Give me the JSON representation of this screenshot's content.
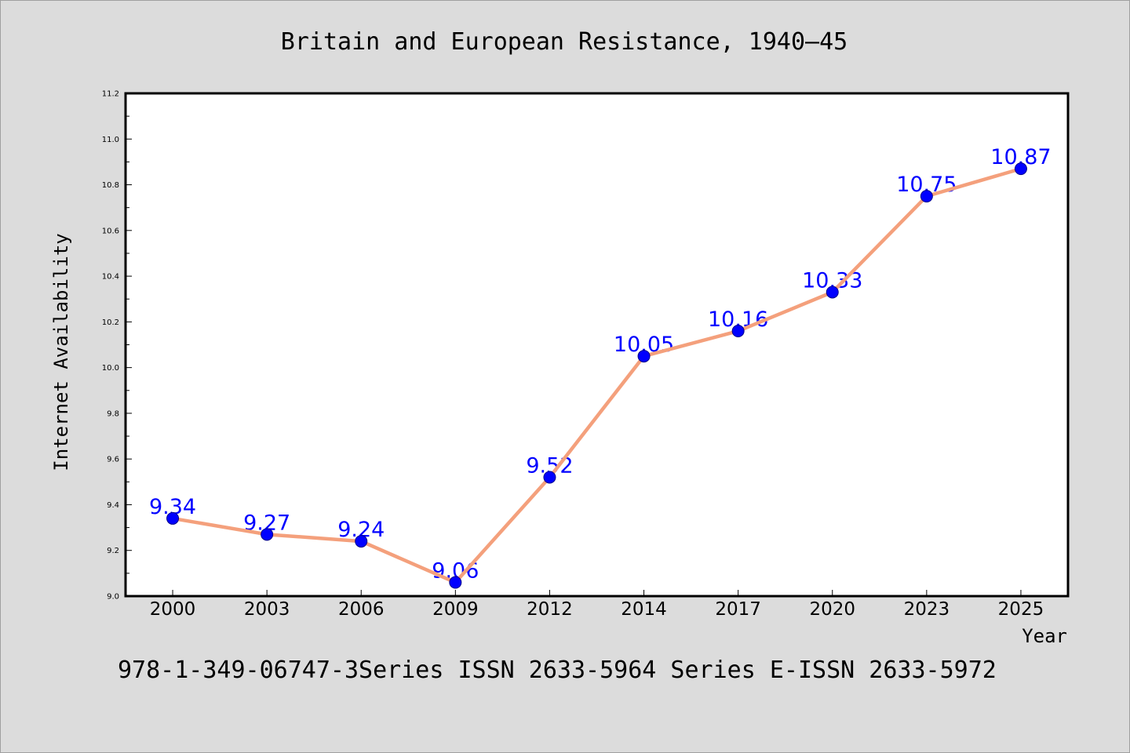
{
  "footer": "978-1-349-06747-3Series ISSN 2633-5964 Series E-ISSN 2633-5972",
  "colors": {
    "background": "#dcdcdc",
    "plot_background": "#ffffff",
    "line": "#f4a07c",
    "marker": "#0000ff",
    "marker_edge": "#00008b",
    "data_label": "#0000ff",
    "frame": "#000000"
  },
  "chart_data": {
    "type": "line",
    "title": "Britain and European Resistance, 1940–45",
    "xlabel": "Year",
    "ylabel": "Internet Availability",
    "categories": [
      "2000",
      "2003",
      "2006",
      "2009",
      "2012",
      "2014",
      "2017",
      "2020",
      "2023",
      "2025"
    ],
    "series": [
      {
        "values": [
          9.34,
          9.27,
          9.24,
          9.06,
          9.52,
          10.05,
          10.16,
          10.33,
          10.75,
          10.87
        ]
      }
    ],
    "ylim": [
      9.0,
      11.2
    ],
    "yticks": [
      "9.0",
      "9.2",
      "9.4",
      "9.6",
      "9.8",
      "10.0",
      "10.2",
      "10.4",
      "10.6",
      "10.8",
      "11.0",
      "11.2"
    ],
    "data_labels": true,
    "markers": true,
    "grid": false,
    "legend": false
  }
}
